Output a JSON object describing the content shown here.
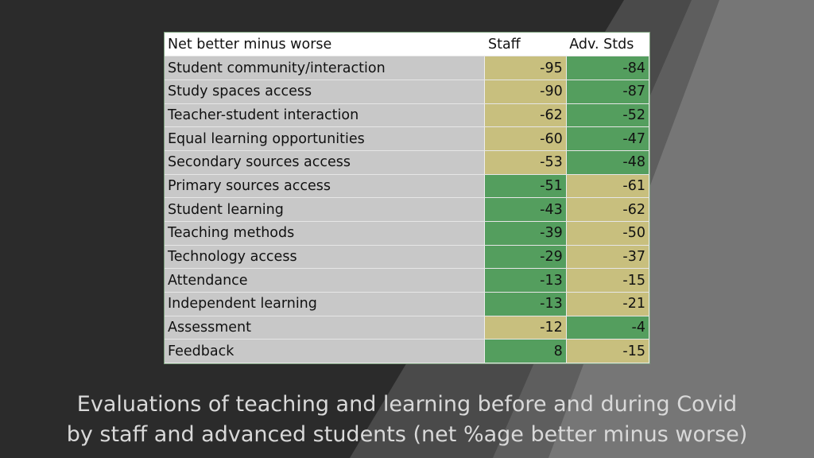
{
  "caption": {
    "line1": "Evaluations of teaching and learning before and during Covid",
    "line2": "by staff and advanced students (net %age better minus worse)"
  },
  "colors": {
    "background": "#2b2b2b",
    "band_light": "#7a7a7a",
    "band_mid": "#5a5a5a",
    "label_cell": "#c8c8c8",
    "green": "#549e5e",
    "tan": "#c8bf7e"
  },
  "chart_data": {
    "type": "table",
    "header": {
      "label": "Net better minus worse",
      "staff": "Staff",
      "adv": "Adv. Stds"
    },
    "rows": [
      {
        "label": "Student community/interaction",
        "staff": "-95",
        "adv": "-84",
        "staff_color": "tan",
        "adv_color": "green"
      },
      {
        "label": "Study spaces access",
        "staff": "-90",
        "adv": "-87",
        "staff_color": "tan",
        "adv_color": "green"
      },
      {
        "label": "Teacher-student interaction",
        "staff": "-62",
        "adv": "-52",
        "staff_color": "tan",
        "adv_color": "green"
      },
      {
        "label": "Equal learning opportunities",
        "staff": "-60",
        "adv": "-47",
        "staff_color": "tan",
        "adv_color": "green"
      },
      {
        "label": "Secondary sources access",
        "staff": "-53",
        "adv": "-48",
        "staff_color": "tan",
        "adv_color": "green"
      },
      {
        "label": "Primary sources access",
        "staff": "-51",
        "adv": "-61",
        "staff_color": "green",
        "adv_color": "tan"
      },
      {
        "label": "Student learning",
        "staff": "-43",
        "adv": "-62",
        "staff_color": "green",
        "adv_color": "tan"
      },
      {
        "label": "Teaching methods",
        "staff": "-39",
        "adv": "-50",
        "staff_color": "green",
        "adv_color": "tan"
      },
      {
        "label": "Technology access",
        "staff": "-29",
        "adv": "-37",
        "staff_color": "green",
        "adv_color": "tan"
      },
      {
        "label": "Attendance",
        "staff": "-13",
        "adv": "-15",
        "staff_color": "green",
        "adv_color": "tan"
      },
      {
        "label": "Independent learning",
        "staff": "-13",
        "adv": "-21",
        "staff_color": "green",
        "adv_color": "tan"
      },
      {
        "label": "Assessment",
        "staff": "-12",
        "adv": "-4",
        "staff_color": "tan",
        "adv_color": "green"
      },
      {
        "label": "Feedback",
        "staff": "8",
        "adv": "-15",
        "staff_color": "green",
        "adv_color": "tan"
      }
    ]
  }
}
